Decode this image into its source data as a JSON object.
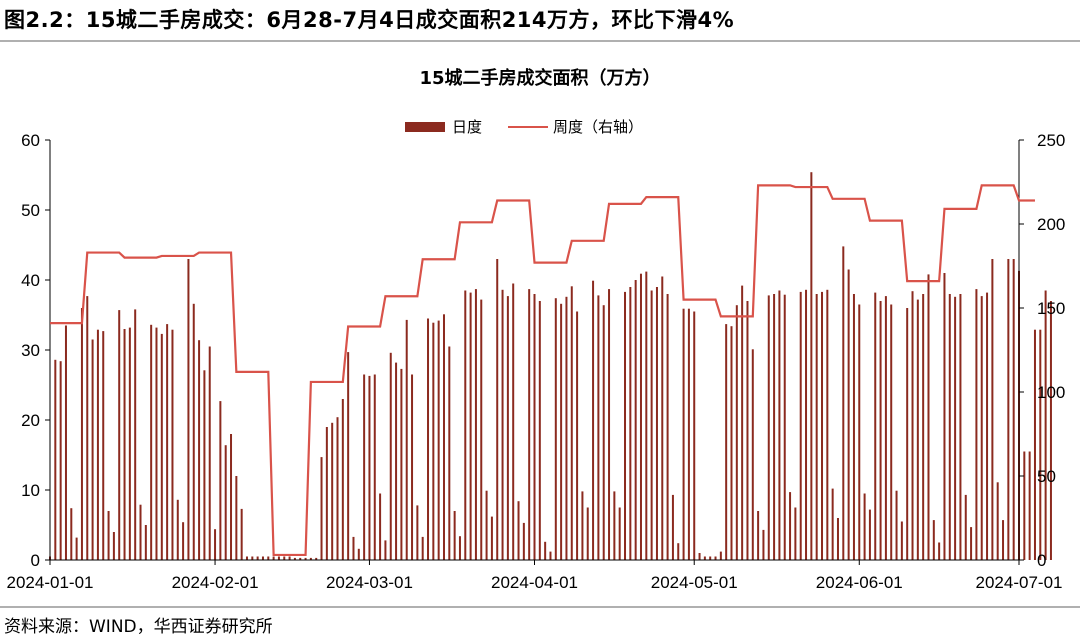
{
  "figure_title": "图2.2：15城二手房成交：6月28-7月4日成交面积214万方，环比下滑4%",
  "source": "资料来源：WIND，华西证券研究所",
  "colors": {
    "bar": "#8b2a1f",
    "line": "#d9534a",
    "axis": "#000000",
    "rule": "#b0b0b0"
  },
  "chart_data": {
    "type": "bar+line",
    "title": "15城二手房成交面积（万方）",
    "x_axis": {
      "type": "date",
      "range": [
        "2024-01-01",
        "2024-07-01"
      ],
      "ticks": [
        "2024-01-01",
        "2024-02-01",
        "2024-03-01",
        "2024-04-01",
        "2024-05-01",
        "2024-06-01",
        "2024-07-01"
      ]
    },
    "y_left": {
      "range": [
        0,
        60
      ],
      "ticks": [
        0,
        10,
        20,
        30,
        40,
        50,
        60
      ]
    },
    "y_right": {
      "range": [
        0,
        250
      ],
      "ticks": [
        0,
        50,
        100,
        150,
        200,
        250
      ]
    },
    "legend": {
      "position": "top-center",
      "entries": [
        "日度",
        "周度（右轴）"
      ]
    },
    "series": [
      {
        "name": "日度",
        "type": "bar",
        "axis": "left",
        "start_date": "2024-01-01",
        "values": [
          0.5,
          28.6,
          28.4,
          33.5,
          7.4,
          3.2,
          36.0,
          37.7,
          31.5,
          32.9,
          32.7,
          7.0,
          4.0,
          35.7,
          33.0,
          33.2,
          35.8,
          7.9,
          5.0,
          33.6,
          33.2,
          32.3,
          33.7,
          32.9,
          8.6,
          5.4,
          43.0,
          36.6,
          31.4,
          27.1,
          30.5,
          4.4,
          22.7,
          16.4,
          18.0,
          12.0,
          7.3,
          0.5,
          0.5,
          0.5,
          0.5,
          0.5,
          0.5,
          0.5,
          0.5,
          0.5,
          0.3,
          0.3,
          0.3,
          0.3,
          0.3,
          14.7,
          19.0,
          19.6,
          20.4,
          23.0,
          29.7,
          3.3,
          1.6,
          26.5,
          26.3,
          26.5,
          9.5,
          2.8,
          29.6,
          28.2,
          27.3,
          34.3,
          26.5,
          7.8,
          3.3,
          34.5,
          33.9,
          34.2,
          35.1,
          30.5,
          7.0,
          3.4,
          38.5,
          38.2,
          38.7,
          37.2,
          9.9,
          6.2,
          43.0,
          38.6,
          37.7,
          39.5,
          8.4,
          5.3,
          38.7,
          38.0,
          37.0,
          2.6,
          1.2,
          37.4,
          36.6,
          37.6,
          39.1,
          35.5,
          9.8,
          7.5,
          39.9,
          37.8,
          36.4,
          38.7,
          9.8,
          7.5,
          38.3,
          39.0,
          40.0,
          40.9,
          41.2,
          38.5,
          39.0,
          40.5,
          38.0,
          9.3,
          2.4,
          35.9,
          35.9,
          35.5,
          1.0,
          0.5,
          0.5,
          0.5,
          1.2,
          33.7,
          33.4,
          36.4,
          39.2,
          37.0,
          30.1,
          7.0,
          4.3,
          37.8,
          38.0,
          38.5,
          37.9,
          9.7,
          7.5,
          38.3,
          38.6,
          55.4,
          38.0,
          38.3,
          38.6,
          10.2,
          6.0,
          44.8,
          41.5,
          38.0,
          36.5,
          9.5,
          7.2,
          38.2,
          37.0,
          37.7,
          36.5,
          9.9,
          5.5,
          36.0,
          38.4,
          37.2,
          38.0,
          40.8,
          5.7,
          2.5,
          41.0,
          38.0,
          37.6,
          38.0,
          9.3,
          4.7,
          38.7,
          37.7,
          38.2,
          43.0,
          11.1,
          5.7,
          43.0,
          43.0,
          41.3,
          15.5,
          15.5,
          32.9,
          32.9,
          38.5,
          37.0
        ]
      },
      {
        "name": "周度（右轴）",
        "type": "step-line",
        "axis": "right",
        "points": [
          [
            "2024-01-01",
            141
          ],
          [
            "2024-01-07",
            141
          ],
          [
            "2024-01-08",
            183
          ],
          [
            "2024-01-14",
            183
          ],
          [
            "2024-01-15",
            180
          ],
          [
            "2024-01-21",
            180
          ],
          [
            "2024-01-22",
            181
          ],
          [
            "2024-01-28",
            181
          ],
          [
            "2024-01-29",
            183
          ],
          [
            "2024-02-04",
            183
          ],
          [
            "2024-02-05",
            112
          ],
          [
            "2024-02-11",
            112
          ],
          [
            "2024-02-12",
            3
          ],
          [
            "2024-02-18",
            3
          ],
          [
            "2024-02-19",
            106
          ],
          [
            "2024-02-25",
            106
          ],
          [
            "2024-02-26",
            139
          ],
          [
            "2024-03-03",
            139
          ],
          [
            "2024-03-04",
            157
          ],
          [
            "2024-03-10",
            157
          ],
          [
            "2024-03-11",
            179
          ],
          [
            "2024-03-17",
            179
          ],
          [
            "2024-03-18",
            201
          ],
          [
            "2024-03-24",
            201
          ],
          [
            "2024-03-25",
            214
          ],
          [
            "2024-03-31",
            214
          ],
          [
            "2024-04-01",
            177
          ],
          [
            "2024-04-07",
            177
          ],
          [
            "2024-04-08",
            190
          ],
          [
            "2024-04-14",
            190
          ],
          [
            "2024-04-15",
            212
          ],
          [
            "2024-04-21",
            212
          ],
          [
            "2024-04-22",
            216
          ],
          [
            "2024-04-28",
            216
          ],
          [
            "2024-04-29",
            155
          ],
          [
            "2024-05-05",
            155
          ],
          [
            "2024-05-06",
            145
          ],
          [
            "2024-05-12",
            145
          ],
          [
            "2024-05-13",
            223
          ],
          [
            "2024-05-19",
            223
          ],
          [
            "2024-05-20",
            222
          ],
          [
            "2024-05-26",
            222
          ],
          [
            "2024-05-27",
            215
          ],
          [
            "2024-06-02",
            215
          ],
          [
            "2024-06-03",
            202
          ],
          [
            "2024-06-09",
            202
          ],
          [
            "2024-06-10",
            166
          ],
          [
            "2024-06-16",
            166
          ],
          [
            "2024-06-17",
            209
          ],
          [
            "2024-06-23",
            209
          ],
          [
            "2024-06-24",
            223
          ],
          [
            "2024-06-30",
            223
          ],
          [
            "2024-07-01",
            214
          ],
          [
            "2024-07-04",
            214
          ]
        ]
      }
    ]
  }
}
